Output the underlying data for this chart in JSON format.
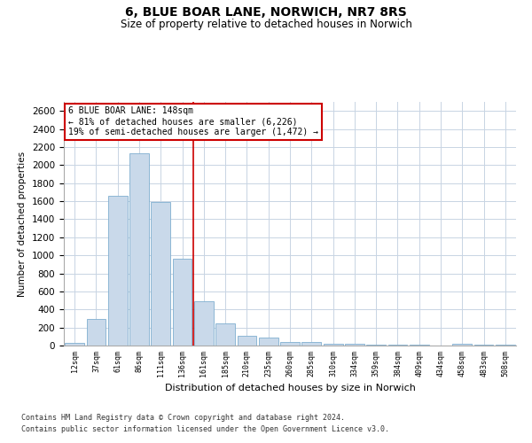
{
  "title": "6, BLUE BOAR LANE, NORWICH, NR7 8RS",
  "subtitle": "Size of property relative to detached houses in Norwich",
  "xlabel": "Distribution of detached houses by size in Norwich",
  "ylabel": "Number of detached properties",
  "bar_color": "#c9d9ea",
  "bar_edge_color": "#7fafd0",
  "categories": [
    "12sqm",
    "37sqm",
    "61sqm",
    "86sqm",
    "111sqm",
    "136sqm",
    "161sqm",
    "185sqm",
    "210sqm",
    "235sqm",
    "260sqm",
    "285sqm",
    "310sqm",
    "334sqm",
    "359sqm",
    "384sqm",
    "409sqm",
    "434sqm",
    "458sqm",
    "483sqm",
    "508sqm"
  ],
  "values": [
    25,
    290,
    1660,
    2130,
    1590,
    960,
    490,
    245,
    110,
    90,
    35,
    35,
    20,
    20,
    10,
    5,
    5,
    0,
    15,
    5,
    10
  ],
  "ylim": [
    0,
    2700
  ],
  "yticks": [
    0,
    200,
    400,
    600,
    800,
    1000,
    1200,
    1400,
    1600,
    1800,
    2000,
    2200,
    2400,
    2600
  ],
  "vline_pos": 5.5,
  "vline_color": "#cc0000",
  "annotation_box_text": "6 BLUE BOAR LANE: 148sqm\n← 81% of detached houses are smaller (6,226)\n19% of semi-detached houses are larger (1,472) →",
  "background_color": "#ffffff",
  "grid_color": "#c8d4e3",
  "footer_line1": "Contains HM Land Registry data © Crown copyright and database right 2024.",
  "footer_line2": "Contains public sector information licensed under the Open Government Licence v3.0."
}
